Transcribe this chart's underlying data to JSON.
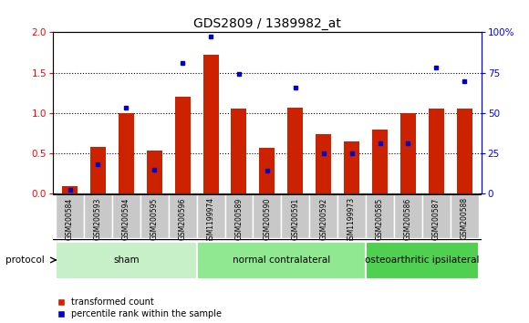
{
  "title": "GDS2809 / 1389982_at",
  "samples": [
    "GSM200584",
    "GSM200593",
    "GSM200594",
    "GSM200595",
    "GSM200596",
    "GSM1199974",
    "GSM200589",
    "GSM200590",
    "GSM200591",
    "GSM200592",
    "GSM1199973",
    "GSM200585",
    "GSM200586",
    "GSM200587",
    "GSM200588"
  ],
  "red_values": [
    0.09,
    0.58,
    1.0,
    0.53,
    1.2,
    1.72,
    1.06,
    0.57,
    1.07,
    0.74,
    0.65,
    0.8,
    1.0,
    1.06,
    1.05
  ],
  "blue_percentile": [
    2.5,
    18.5,
    53.5,
    15.0,
    81.0,
    97.5,
    74.5,
    14.5,
    66.0,
    25.0,
    25.0,
    31.5,
    31.5,
    78.0,
    69.5
  ],
  "groups": [
    {
      "label": "sham",
      "start": 0,
      "end": 5,
      "color": "#c8f0c8"
    },
    {
      "label": "normal contralateral",
      "start": 5,
      "end": 11,
      "color": "#90e890"
    },
    {
      "label": "osteoarthritic ipsilateral",
      "start": 11,
      "end": 15,
      "color": "#50d050"
    }
  ],
  "ylim_left": [
    0,
    2.0
  ],
  "ylim_right": [
    0,
    100
  ],
  "yticks_left": [
    0,
    0.5,
    1.0,
    1.5,
    2.0
  ],
  "yticks_right": [
    0,
    25,
    50,
    75,
    100
  ],
  "ytick_labels_right": [
    "0",
    "25",
    "50",
    "75",
    "100%"
  ],
  "bar_color": "#cc2200",
  "dot_color": "#0000cc",
  "bar_width": 0.55,
  "bg_color": "#ffffff",
  "plot_bg_color": "#ffffff",
  "legend_red": "transformed count",
  "legend_blue": "percentile rank within the sample",
  "protocol_label": "protocol",
  "title_fontsize": 10,
  "tick_fontsize": 6.5,
  "label_fontsize": 8,
  "sample_bg_color": "#c8c8c8"
}
